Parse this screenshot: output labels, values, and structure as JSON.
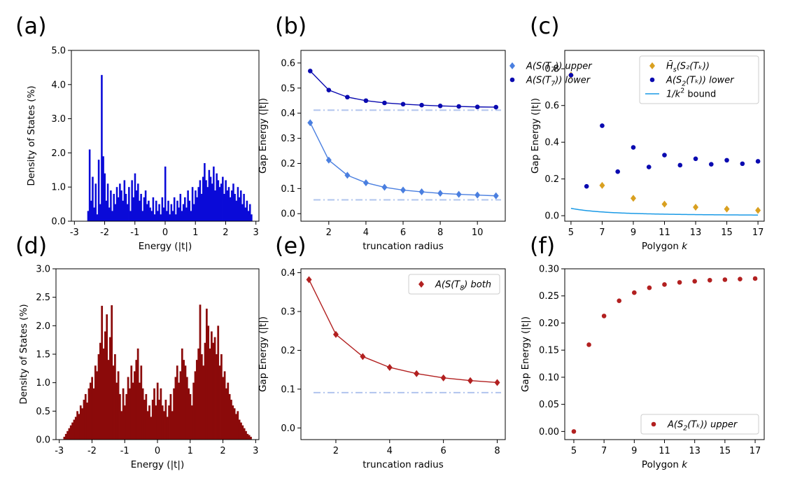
{
  "chart_data": [
    {
      "panel": "(a)",
      "type": "bar",
      "xlabel": "Energy (|t|)",
      "ylabel": "Density of States (%)",
      "xlim": [
        -3.1,
        3.1
      ],
      "ylim": [
        0,
        5.0
      ],
      "xticks": [
        -3,
        -2,
        -1,
        0,
        1,
        2,
        3
      ],
      "yticks": [
        0.0,
        1.0,
        2.0,
        3.0,
        4.0,
        5.0
      ],
      "color": "#0a0ad8",
      "grid": false,
      "x": [
        -2.55,
        -2.5,
        -2.45,
        -2.4,
        -2.35,
        -2.3,
        -2.25,
        -2.2,
        -2.15,
        -2.1,
        -2.05,
        -2.0,
        -1.95,
        -1.9,
        -1.85,
        -1.8,
        -1.75,
        -1.7,
        -1.65,
        -1.6,
        -1.55,
        -1.5,
        -1.45,
        -1.4,
        -1.35,
        -1.3,
        -1.25,
        -1.2,
        -1.15,
        -1.1,
        -1.05,
        -1.0,
        -0.95,
        -0.9,
        -0.85,
        -0.8,
        -0.75,
        -0.7,
        -0.65,
        -0.6,
        -0.55,
        -0.5,
        -0.45,
        -0.4,
        -0.35,
        -0.3,
        -0.25,
        -0.2,
        -0.15,
        -0.1,
        -0.05,
        0.0,
        0.05,
        0.1,
        0.15,
        0.2,
        0.25,
        0.3,
        0.35,
        0.4,
        0.45,
        0.5,
        0.55,
        0.6,
        0.65,
        0.7,
        0.75,
        0.8,
        0.85,
        0.9,
        0.95,
        1.0,
        1.05,
        1.1,
        1.15,
        1.2,
        1.25,
        1.3,
        1.35,
        1.4,
        1.45,
        1.5,
        1.55,
        1.6,
        1.65,
        1.7,
        1.75,
        1.8,
        1.85,
        1.9,
        1.95,
        2.0,
        2.05,
        2.1,
        2.15,
        2.2,
        2.25,
        2.3,
        2.35,
        2.4,
        2.45,
        2.5,
        2.55,
        2.6,
        2.65,
        2.7,
        2.75,
        2.8,
        2.85
      ],
      "values": [
        0.3,
        2.1,
        0.6,
        1.3,
        0.4,
        1.1,
        0.2,
        1.8,
        0.5,
        4.28,
        1.9,
        1.4,
        0.6,
        1.1,
        0.4,
        0.9,
        0.3,
        0.8,
        0.5,
        1.0,
        0.7,
        1.1,
        0.9,
        0.6,
        1.2,
        0.8,
        0.5,
        1.0,
        0.3,
        1.2,
        0.7,
        1.4,
        0.9,
        1.1,
        0.6,
        0.8,
        0.3,
        0.7,
        0.9,
        0.5,
        0.6,
        0.4,
        0.3,
        0.7,
        0.2,
        0.6,
        0.3,
        0.5,
        0.2,
        0.7,
        0.4,
        1.6,
        0.3,
        0.6,
        0.2,
        0.5,
        0.3,
        0.7,
        0.2,
        0.6,
        0.4,
        0.8,
        0.3,
        0.5,
        0.7,
        0.4,
        0.9,
        0.6,
        0.3,
        1.0,
        0.5,
        0.9,
        0.7,
        1.0,
        1.2,
        0.8,
        1.3,
        1.7,
        1.2,
        1.0,
        1.5,
        1.3,
        1.1,
        1.6,
        0.9,
        1.4,
        1.2,
        1.0,
        1.1,
        1.3,
        0.8,
        1.2,
        0.9,
        1.0,
        0.7,
        0.9,
        1.1,
        0.8,
        0.6,
        1.0,
        0.7,
        0.9,
        0.5,
        0.8,
        0.4,
        0.6,
        0.3,
        0.5,
        0.2
      ]
    },
    {
      "panel": "(b)",
      "type": "line",
      "xlabel": "truncation radius",
      "ylabel": "Gap Energy (|t|)",
      "xlim": [
        0.5,
        11.5
      ],
      "ylim": [
        -0.03,
        0.65
      ],
      "xticks": [
        2,
        4,
        6,
        8,
        10
      ],
      "yticks": [
        0.0,
        0.1,
        0.2,
        0.3,
        0.4,
        0.5,
        0.6
      ],
      "legend_position": "top-right",
      "series": [
        {
          "name": "A(S(T7)) upper",
          "legend_main": "A(S(T",
          "legend_sub": "7",
          "legend_tail": ")) upper",
          "marker": "diamond",
          "color": "#4a7fe0",
          "x": [
            1,
            2,
            3,
            4,
            5,
            6,
            7,
            8,
            9,
            10,
            11
          ],
          "values": [
            0.362,
            0.213,
            0.153,
            0.123,
            0.105,
            0.094,
            0.087,
            0.081,
            0.077,
            0.074,
            0.071
          ]
        },
        {
          "name": "A(S(T7)) lower",
          "legend_main": "A(S(T",
          "legend_sub": "7",
          "legend_tail": ")) lower",
          "marker": "circle",
          "color": "#0a0ab0",
          "x": [
            1,
            2,
            3,
            4,
            5,
            6,
            7,
            8,
            9,
            10,
            11
          ],
          "values": [
            0.568,
            0.492,
            0.464,
            0.45,
            0.441,
            0.436,
            0.432,
            0.429,
            0.427,
            0.425,
            0.424
          ]
        }
      ],
      "reference_lines": [
        {
          "y": 0.412,
          "color": "#b0c4ee",
          "style": "dash-dot"
        },
        {
          "y": 0.055,
          "color": "#b0c4ee",
          "style": "dash-dot"
        }
      ]
    },
    {
      "panel": "(c)",
      "type": "scatter",
      "xlabel_main": "Polygon ",
      "xlabel_var": "k",
      "ylabel": "Gap Energy (|t|)",
      "xlim": [
        4.6,
        17.4
      ],
      "ylim": [
        -0.03,
        0.9
      ],
      "xticks": [
        5,
        7,
        9,
        11,
        13,
        15,
        17
      ],
      "yticks": [
        0.0,
        0.2,
        0.4,
        0.6,
        0.8
      ],
      "legend_position": "top-right",
      "series": [
        {
          "name": "H̄s(S2(Tk))",
          "legend_main": "H̄",
          "legend_sub": "s",
          "legend_tail": "(S₂(T_k))",
          "marker": "diamond",
          "color": "#d9a020",
          "x": [
            5,
            7,
            9,
            11,
            13,
            15,
            17
          ],
          "values": [
            0.765,
            0.165,
            0.095,
            0.063,
            0.046,
            0.036,
            0.029
          ]
        },
        {
          "name": "A(S2(Tk)) lower",
          "legend_main": "A(S",
          "legend_sub": "2",
          "legend_tail": "(T_k)) lower",
          "marker": "circle",
          "color": "#0a0ab0",
          "x": [
            5,
            6,
            7,
            8,
            9,
            10,
            11,
            12,
            13,
            14,
            15,
            16,
            17
          ],
          "values": [
            0.765,
            0.16,
            0.49,
            0.24,
            0.372,
            0.265,
            0.33,
            0.275,
            0.31,
            0.28,
            0.302,
            0.283,
            0.296
          ]
        },
        {
          "name": "1/k² bound",
          "legend_main": "1/k",
          "legend_sup": "2",
          "legend_tail": " bound",
          "marker": "line",
          "color": "#1a9ae6",
          "formula": "1/k^2",
          "x_range": [
            5,
            17
          ]
        }
      ]
    },
    {
      "panel": "(d)",
      "type": "bar",
      "xlabel": "Energy (|t|)",
      "ylabel": "Density of States (%)",
      "xlim": [
        -3.1,
        3.1
      ],
      "ylim": [
        0,
        3.0
      ],
      "xticks": [
        -3,
        -2,
        -1,
        0,
        1,
        2,
        3
      ],
      "yticks": [
        0.0,
        0.5,
        1.0,
        1.5,
        2.0,
        2.5,
        3.0
      ],
      "color": "#8b0a0a",
      "grid": false,
      "x": [
        -2.85,
        -2.8,
        -2.75,
        -2.7,
        -2.65,
        -2.6,
        -2.55,
        -2.5,
        -2.45,
        -2.4,
        -2.35,
        -2.3,
        -2.25,
        -2.2,
        -2.15,
        -2.1,
        -2.05,
        -2.0,
        -1.95,
        -1.9,
        -1.85,
        -1.8,
        -1.75,
        -1.7,
        -1.65,
        -1.6,
        -1.55,
        -1.5,
        -1.45,
        -1.4,
        -1.35,
        -1.3,
        -1.25,
        -1.2,
        -1.15,
        -1.1,
        -1.05,
        -1.0,
        -0.95,
        -0.9,
        -0.85,
        -0.8,
        -0.75,
        -0.7,
        -0.65,
        -0.6,
        -0.55,
        -0.5,
        -0.45,
        -0.4,
        -0.35,
        -0.3,
        -0.25,
        -0.2,
        -0.15,
        -0.1,
        -0.05,
        0.0,
        0.05,
        0.1,
        0.15,
        0.2,
        0.25,
        0.3,
        0.35,
        0.4,
        0.45,
        0.5,
        0.55,
        0.6,
        0.65,
        0.7,
        0.75,
        0.8,
        0.85,
        0.9,
        0.95,
        1.0,
        1.05,
        1.1,
        1.15,
        1.2,
        1.25,
        1.3,
        1.35,
        1.4,
        1.45,
        1.5,
        1.55,
        1.6,
        1.65,
        1.7,
        1.75,
        1.8,
        1.85,
        1.9,
        1.95,
        2.0,
        2.05,
        2.1,
        2.15,
        2.2,
        2.25,
        2.3,
        2.35,
        2.4,
        2.45,
        2.5,
        2.55,
        2.6,
        2.65,
        2.7,
        2.75,
        2.8,
        2.85
      ],
      "values": [
        0.05,
        0.1,
        0.15,
        0.2,
        0.25,
        0.3,
        0.35,
        0.4,
        0.5,
        0.45,
        0.6,
        0.55,
        0.7,
        0.8,
        0.65,
        0.9,
        1.0,
        1.1,
        0.9,
        1.3,
        1.2,
        1.5,
        1.7,
        2.35,
        1.6,
        1.9,
        2.2,
        1.4,
        1.8,
        2.36,
        1.3,
        1.5,
        1.0,
        1.2,
        0.8,
        0.5,
        0.9,
        0.6,
        0.8,
        1.1,
        0.9,
        1.3,
        1.0,
        1.2,
        1.4,
        1.6,
        1.0,
        1.3,
        0.9,
        0.7,
        0.8,
        0.5,
        0.6,
        0.4,
        0.7,
        0.9,
        0.6,
        1.0,
        0.7,
        0.9,
        0.6,
        0.5,
        0.7,
        0.4,
        0.6,
        0.8,
        0.5,
        0.9,
        1.1,
        1.3,
        1.0,
        1.2,
        1.6,
        1.4,
        1.3,
        1.1,
        0.9,
        0.8,
        0.6,
        1.0,
        1.2,
        1.4,
        1.6,
        2.37,
        1.5,
        1.3,
        1.7,
        2.3,
        2.0,
        1.6,
        1.9,
        1.7,
        1.8,
        1.5,
        2.0,
        1.3,
        1.5,
        1.1,
        1.2,
        0.9,
        1.0,
        0.8,
        0.7,
        0.6,
        0.55,
        0.45,
        0.5,
        0.35,
        0.3,
        0.25,
        0.2,
        0.15,
        0.1,
        0.08,
        0.05
      ]
    },
    {
      "panel": "(e)",
      "type": "line",
      "xlabel": "truncation radius",
      "ylabel": "Gap Energy (|t|)",
      "xlim": [
        0.7,
        8.3
      ],
      "ylim": [
        -0.03,
        0.41
      ],
      "xticks": [
        2,
        4,
        6,
        8
      ],
      "yticks": [
        0.0,
        0.1,
        0.2,
        0.3,
        0.4
      ],
      "legend_position": "top-right",
      "series": [
        {
          "name": "A(S(T8) both",
          "legend_main": "A(S(T",
          "legend_sub": "8",
          "legend_tail": ") both",
          "marker": "diamond",
          "color": "#b22020",
          "x": [
            1,
            2,
            3,
            4,
            5,
            6,
            7,
            8
          ],
          "values": [
            0.382,
            0.241,
            0.184,
            0.156,
            0.14,
            0.129,
            0.122,
            0.117
          ]
        }
      ],
      "reference_lines": [
        {
          "y": 0.091,
          "color": "#b0c4ee",
          "style": "dash-dot"
        }
      ]
    },
    {
      "panel": "(f)",
      "type": "scatter",
      "xlabel_main": "Polygon ",
      "xlabel_var": "k",
      "ylabel": "Gap Energy (|t|)",
      "xlim": [
        4.4,
        17.6
      ],
      "ylim": [
        -0.015,
        0.3
      ],
      "xticks": [
        5,
        7,
        9,
        11,
        13,
        15,
        17
      ],
      "yticks": [
        0.0,
        0.05,
        0.1,
        0.15,
        0.2,
        0.25,
        0.3
      ],
      "ytick_labels": [
        "0.00",
        "0.05",
        "0.10",
        "0.15",
        "0.20",
        "0.25",
        "0.30"
      ],
      "legend_position": "bottom-right",
      "series": [
        {
          "name": "A(S2(Tk)) upper",
          "legend_main": "A(S",
          "legend_sub": "2",
          "legend_tail": "(T_k)) upper",
          "marker": "circle",
          "color": "#b22020",
          "x": [
            5,
            6,
            7,
            8,
            9,
            10,
            11,
            12,
            13,
            14,
            15,
            16,
            17
          ],
          "values": [
            0.0,
            0.16,
            0.213,
            0.241,
            0.256,
            0.265,
            0.271,
            0.275,
            0.277,
            0.279,
            0.28,
            0.281,
            0.282
          ]
        }
      ]
    }
  ],
  "panel_labels": [
    "(a)",
    "(b)",
    "(c)",
    "(d)",
    "(e)",
    "(f)"
  ]
}
